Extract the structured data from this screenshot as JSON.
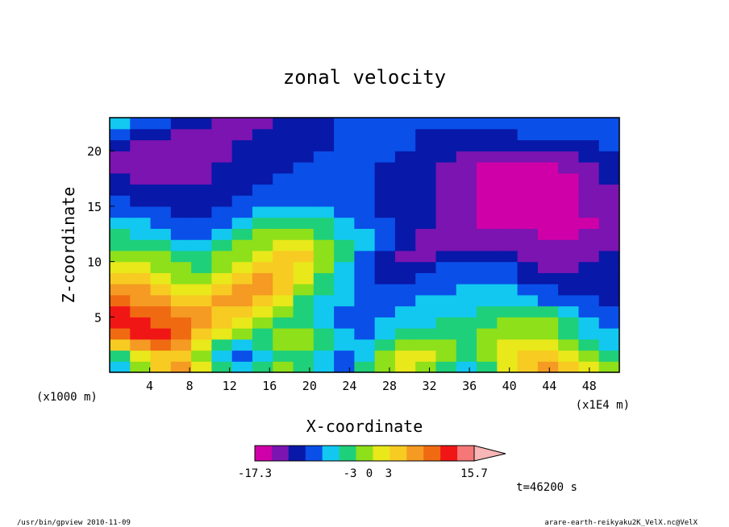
{
  "chart_data": {
    "type": "heatmap",
    "title": "zonal velocity",
    "xlabel": "X-coordinate",
    "ylabel": "Z-coordinate",
    "x_unit_label": "(x1000 m)",
    "x_scale_label": "(x1E4 m)",
    "xlim": [
      0,
      51
    ],
    "ylim": [
      0,
      23
    ],
    "x_ticks": [
      4,
      8,
      12,
      16,
      20,
      24,
      28,
      32,
      36,
      40,
      44,
      48
    ],
    "y_ticks": [
      5,
      10,
      15,
      20
    ],
    "colorbar": {
      "min_label": "-17.3",
      "max_label": "15.7",
      "mid_labels": [
        "-3",
        "0",
        "3"
      ],
      "levels": [
        -17.3,
        -12,
        -8,
        -3,
        -2,
        -1,
        0,
        1,
        2,
        3,
        6,
        9,
        12,
        15.7
      ],
      "colors": [
        "#d000a8",
        "#7b14b0",
        "#0818a8",
        "#0a4fe8",
        "#12c8f0",
        "#1fd07a",
        "#8ee01a",
        "#e8e81a",
        "#f7cb22",
        "#f59a22",
        "#f06a12",
        "#f01616",
        "#f57777",
        "#f9b6b6"
      ]
    },
    "time_label": "t=46200 s",
    "field": [
      [
        4,
        6,
        8,
        9,
        7,
        5,
        4,
        5,
        6,
        5,
        4,
        3,
        5,
        6,
        7,
        6,
        5,
        4,
        5,
        7,
        8,
        9,
        8,
        7,
        6
      ],
      [
        5,
        7,
        8,
        8,
        6,
        4,
        3,
        4,
        5,
        5,
        4,
        3,
        4,
        6,
        7,
        7,
        6,
        5,
        6,
        7,
        8,
        8,
        7,
        6,
        5
      ],
      [
        8,
        9,
        10,
        9,
        7,
        5,
        4,
        5,
        6,
        6,
        5,
        4,
        4,
        5,
        6,
        6,
        6,
        5,
        6,
        7,
        7,
        7,
        6,
        5,
        4
      ],
      [
        10,
        11,
        11,
        10,
        8,
        7,
        6,
        5,
        6,
        6,
        5,
        4,
        3,
        4,
        5,
        5,
        5,
        5,
        6,
        6,
        6,
        6,
        5,
        4,
        4
      ],
      [
        11,
        11,
        10,
        10,
        9,
        8,
        7,
        6,
        5,
        5,
        4,
        3,
        3,
        4,
        4,
        4,
        5,
        5,
        5,
        6,
        6,
        6,
        5,
        4,
        3
      ],
      [
        11,
        10,
        10,
        9,
        9,
        8,
        8,
        7,
        6,
        5,
        4,
        3,
        3,
        3,
        4,
        4,
        4,
        4,
        5,
        5,
        5,
        5,
        4,
        3,
        3
      ],
      [
        10,
        9,
        9,
        8,
        8,
        9,
        9,
        8,
        7,
        5,
        4,
        4,
        3,
        3,
        3,
        4,
        4,
        4,
        4,
        4,
        4,
        3,
        3,
        3,
        2
      ],
      [
        9,
        9,
        8,
        7,
        7,
        8,
        9,
        9,
        8,
        6,
        5,
        4,
        3,
        3,
        3,
        3,
        3,
        4,
        4,
        4,
        3,
        3,
        2,
        2,
        2
      ],
      [
        8,
        8,
        7,
        6,
        6,
        7,
        8,
        9,
        8,
        7,
        5,
        4,
        3,
        2,
        2,
        3,
        3,
        3,
        3,
        3,
        2,
        2,
        2,
        2,
        2
      ],
      [
        7,
        7,
        6,
        6,
        5,
        6,
        7,
        8,
        8,
        7,
        6,
        4,
        3,
        2,
        2,
        2,
        3,
        3,
        3,
        3,
        2,
        1,
        1,
        2,
        2
      ],
      [
        6,
        6,
        6,
        5,
        5,
        6,
        6,
        7,
        8,
        8,
        6,
        5,
        3,
        2,
        1,
        1,
        2,
        2,
        2,
        2,
        1,
        1,
        1,
        1,
        2
      ],
      [
        5,
        5,
        5,
        4,
        4,
        5,
        6,
        6,
        7,
        7,
        6,
        5,
        4,
        3,
        2,
        1,
        1,
        1,
        1,
        1,
        1,
        1,
        1,
        1,
        1
      ],
      [
        5,
        4,
        4,
        3,
        3,
        4,
        5,
        6,
        6,
        6,
        5,
        4,
        4,
        3,
        2,
        1,
        1,
        1,
        1,
        1,
        1,
        0,
        0,
        1,
        1
      ],
      [
        4,
        4,
        3,
        3,
        3,
        3,
        4,
        5,
        5,
        5,
        5,
        4,
        3,
        3,
        2,
        2,
        1,
        1,
        0,
        0,
        0,
        0,
        0,
        0,
        1
      ],
      [
        3,
        3,
        3,
        2,
        2,
        3,
        3,
        4,
        4,
        4,
        4,
        3,
        3,
        2,
        2,
        2,
        1,
        1,
        0,
        0,
        0,
        0,
        0,
        1,
        1
      ],
      [
        3,
        2,
        2,
        2,
        2,
        2,
        3,
        3,
        3,
        3,
        3,
        3,
        3,
        2,
        2,
        2,
        1,
        1,
        0,
        0,
        0,
        0,
        0,
        1,
        1
      ],
      [
        2,
        2,
        2,
        2,
        2,
        2,
        2,
        3,
        3,
        3,
        3,
        3,
        3,
        2,
        2,
        2,
        1,
        1,
        0,
        0,
        0,
        0,
        0,
        1,
        1
      ],
      [
        2,
        1,
        1,
        1,
        1,
        2,
        2,
        2,
        3,
        3,
        3,
        3,
        3,
        2,
        2,
        2,
        1,
        1,
        0,
        0,
        0,
        0,
        0,
        1,
        2
      ],
      [
        1,
        1,
        1,
        1,
        1,
        2,
        2,
        2,
        2,
        3,
        3,
        3,
        3,
        2,
        2,
        2,
        1,
        1,
        0,
        0,
        0,
        0,
        1,
        1,
        2
      ],
      [
        1,
        1,
        1,
        1,
        1,
        1,
        2,
        2,
        2,
        2,
        3,
        3,
        3,
        3,
        2,
        2,
        2,
        1,
        1,
        1,
        1,
        1,
        1,
        2,
        2
      ],
      [
        2,
        1,
        1,
        1,
        1,
        1,
        2,
        2,
        2,
        2,
        2,
        3,
        3,
        3,
        3,
        2,
        2,
        2,
        2,
        2,
        2,
        2,
        2,
        2,
        3
      ],
      [
        3,
        2,
        2,
        1,
        1,
        1,
        1,
        2,
        2,
        2,
        2,
        3,
        3,
        3,
        3,
        2,
        2,
        2,
        2,
        2,
        3,
        3,
        3,
        3,
        3
      ],
      [
        4,
        3,
        3,
        2,
        2,
        1,
        1,
        1,
        2,
        2,
        2,
        3,
        3,
        3,
        3,
        3,
        3,
        3,
        3,
        3,
        3,
        3,
        3,
        3,
        3
      ]
    ]
  },
  "footer": {
    "left": "/usr/bin/gpview  2010-11-09",
    "right": "arare-earth-reikyaku2K_VelX.nc@VelX"
  }
}
